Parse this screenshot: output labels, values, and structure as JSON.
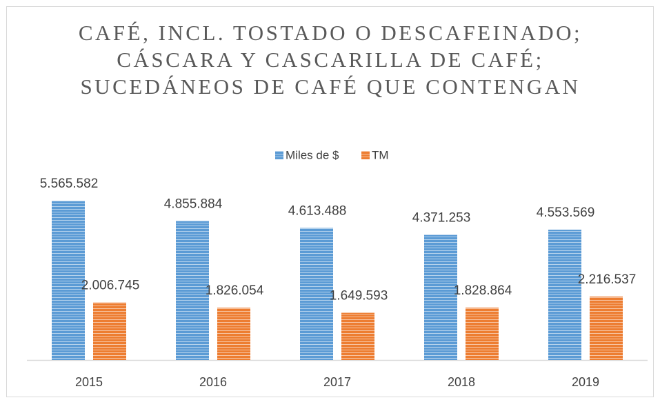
{
  "chart_data": {
    "type": "bar",
    "title": "CAFÉ, INCL. TOSTADO O DESCAFEINADO; CÁSCARA Y CASCARILLA DE CAFÉ; SUCEDÁNEOS DE CAFÉ QUE CONTENGAN",
    "categories": [
      "2015",
      "2016",
      "2017",
      "2018",
      "2019"
    ],
    "series": [
      {
        "name": "Miles de $",
        "color": "#5b9bd5",
        "values": [
          5565582,
          4855884,
          4613488,
          4371253,
          4553569
        ],
        "value_labels": [
          "5.565.582",
          "4.855.884",
          "4.613.488",
          "4.371.253",
          "4.553.569"
        ]
      },
      {
        "name": "TM",
        "color": "#ed7d31",
        "values": [
          2006745,
          1826054,
          1649593,
          1828864,
          2216537
        ],
        "value_labels": [
          "2.006.745",
          "1.826.054",
          "1.649.593",
          "1.828.864",
          "2.216.537"
        ]
      }
    ],
    "ylim": [
      0,
      6000000
    ],
    "legend": "top"
  }
}
